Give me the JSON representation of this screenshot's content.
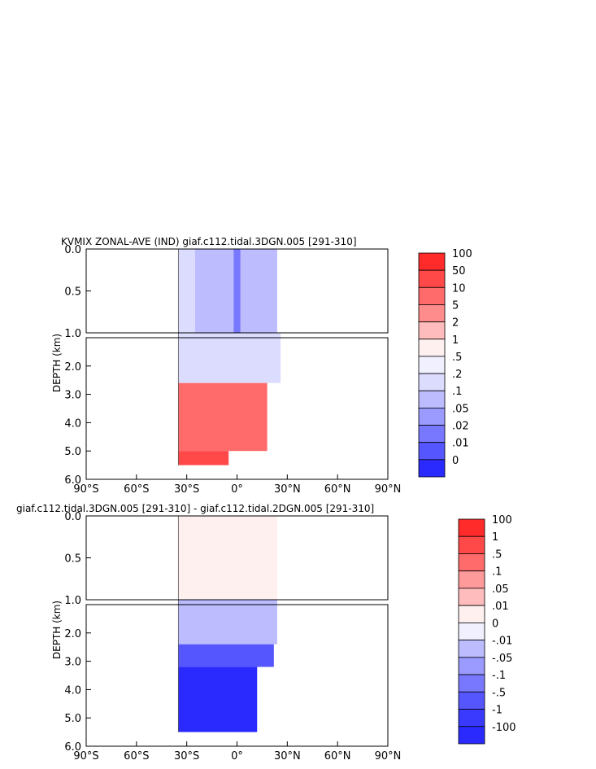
{
  "chart_data": [
    {
      "type": "heatmap",
      "title": "KVMIX ZONAL-AVE (IND) giaf.c112.tidal.3DGN.005 [291-310]",
      "ylabel": "DEPTH (km)",
      "xlabel": "",
      "x_ticks": [
        "90°S",
        "60°S",
        "30°S",
        "0°",
        "30°N",
        "60°N",
        "90°N"
      ],
      "x_tick_values": [
        -90,
        -60,
        -30,
        0,
        30,
        60,
        90
      ],
      "xlim": [
        -90,
        90
      ],
      "upper_panel": {
        "ylim": [
          0,
          1.0
        ],
        "y_ticks": [
          "0.0",
          "0.5",
          "1.0"
        ],
        "y_tick_values": [
          0,
          0.5,
          1.0
        ]
      },
      "lower_panel": {
        "ylim": [
          1.0,
          6.0
        ],
        "y_ticks": [
          "2.0",
          "3.0",
          "4.0",
          "5.0",
          "6.0"
        ],
        "y_tick_values": [
          2,
          3,
          4,
          5,
          6
        ]
      },
      "colorbar": {
        "labels": [
          "100",
          "50",
          "10",
          "5",
          "2",
          "1",
          ".5",
          ".2",
          ".1",
          ".05",
          ".02",
          ".01",
          "0"
        ],
        "colors": [
          "#ff2a2a",
          "#ff4848",
          "#ff6a6a",
          "#ff8c8c",
          "#ffbcbc",
          "#fff0f0",
          "#f0f0ff",
          "#dcdcff",
          "#bcbcff",
          "#9a9aff",
          "#7878ff",
          "#5656ff",
          "#2a2aff"
        ]
      },
      "regions": [
        {
          "x": [
            -35,
            24
          ],
          "depth": [
            0,
            1.0
          ],
          "value": ".1"
        },
        {
          "x": [
            -35,
            -25
          ],
          "depth": [
            0,
            1.0
          ],
          "value": ".2"
        },
        {
          "x": [
            -2,
            2
          ],
          "depth": [
            0,
            1.0
          ],
          "value": ".02"
        },
        {
          "x": [
            -35,
            26
          ],
          "depth": [
            1.0,
            2.6
          ],
          "value": ".2"
        },
        {
          "x": [
            -35,
            18
          ],
          "depth": [
            2.6,
            5.0
          ],
          "value": "10"
        },
        {
          "x": [
            -35,
            -5
          ],
          "depth": [
            5.0,
            5.5
          ],
          "value": "50"
        }
      ]
    },
    {
      "type": "heatmap",
      "title": "giaf.c112.tidal.3DGN.005 [291-310] - giaf.c112.tidal.2DGN.005 [291-310]",
      "ylabel": "DEPTH (km)",
      "xlabel": "",
      "x_ticks": [
        "90°S",
        "60°S",
        "30°S",
        "0°",
        "30°N",
        "60°N",
        "90°N"
      ],
      "x_tick_values": [
        -90,
        -60,
        -30,
        0,
        30,
        60,
        90
      ],
      "xlim": [
        -90,
        90
      ],
      "upper_panel": {
        "ylim": [
          0,
          1.0
        ],
        "y_ticks": [
          "0.0",
          "0.5",
          "1.0"
        ],
        "y_tick_values": [
          0,
          0.5,
          1.0
        ]
      },
      "lower_panel": {
        "ylim": [
          1.0,
          6.0
        ],
        "y_ticks": [
          "2.0",
          "3.0",
          "4.0",
          "5.0",
          "6.0"
        ],
        "y_tick_values": [
          2,
          3,
          4,
          5,
          6
        ]
      },
      "colorbar": {
        "labels": [
          "100",
          "1",
          ".5",
          ".1",
          ".05",
          ".01",
          "0",
          "-.01",
          "-.05",
          "-.1",
          "-.5",
          "-1",
          "-100"
        ],
        "colors": [
          "#ff2a2a",
          "#ff4848",
          "#ff6a6a",
          "#ff9a9a",
          "#ffbcbc",
          "#fff0f0",
          "#f0f0ff",
          "#bcbcff",
          "#9a9aff",
          "#7878ff",
          "#5656ff",
          "#3a3aff",
          "#2a2aff"
        ]
      },
      "regions": [
        {
          "x": [
            -35,
            24
          ],
          "depth": [
            0,
            1.0
          ],
          "value": ".01"
        },
        {
          "x": [
            -35,
            24
          ],
          "depth": [
            1.0,
            2.4
          ],
          "value": "-.01"
        },
        {
          "x": [
            -35,
            22
          ],
          "depth": [
            2.4,
            3.2
          ],
          "value": "-.5"
        },
        {
          "x": [
            -35,
            12
          ],
          "depth": [
            3.2,
            5.5
          ],
          "value": "-100"
        }
      ]
    }
  ]
}
